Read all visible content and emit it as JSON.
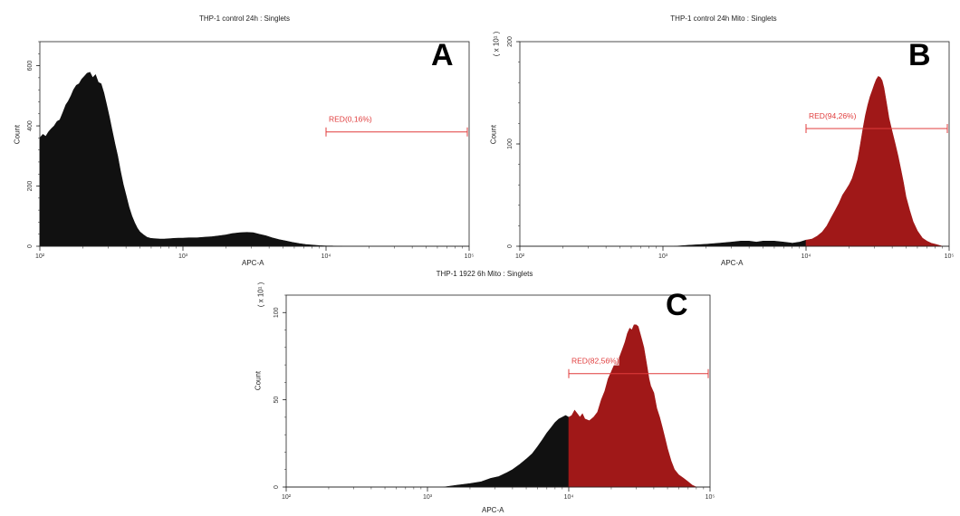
{
  "chart_data": [
    {
      "type": "area",
      "title": "THP-1 control 24h : Singlets",
      "panel_label": "A",
      "xlabel": "APC-A",
      "ylabel": "Count",
      "y_multiplier_label": "",
      "x_scale": "log",
      "xlim": [
        100,
        100000
      ],
      "ylim": [
        0,
        680
      ],
      "x_ticks": [
        100,
        1000,
        10000,
        100000
      ],
      "y_ticks": [
        0,
        200,
        400,
        600
      ],
      "y_tick_labels": [
        "0",
        "200",
        "400",
        "600"
      ],
      "gate": {
        "label": "RED(0,16%)",
        "x_start": 10000,
        "x_end": 100000,
        "y": 380
      },
      "fill_color": "#111111",
      "gate_fill_color": "#111111",
      "series": [
        {
          "x": [
            100,
            105,
            110,
            115,
            120,
            126,
            132,
            138,
            145,
            152,
            158,
            165,
            172,
            180,
            188,
            196,
            205,
            214,
            224,
            234,
            245,
            256,
            268,
            280,
            293,
            306,
            320,
            335,
            350,
            366,
            383,
            400,
            420,
            440,
            460,
            480,
            500,
            530,
            560,
            600,
            640,
            690,
            740,
            800,
            860,
            930,
            1000,
            1100,
            1250,
            1400,
            1600,
            1800,
            2000,
            2200,
            2500,
            2800,
            3100,
            3400,
            3800,
            4200,
            4700,
            5200,
            5800,
            6500,
            7200,
            8000,
            9000,
            10000,
            11000,
            12000,
            13000
          ],
          "y": [
            360,
            372,
            365,
            380,
            390,
            400,
            415,
            420,
            445,
            470,
            482,
            500,
            520,
            535,
            540,
            555,
            565,
            575,
            578,
            560,
            570,
            545,
            540,
            510,
            470,
            430,
            385,
            340,
            300,
            250,
            205,
            170,
            130,
            100,
            78,
            60,
            48,
            38,
            30,
            26,
            25,
            24,
            24,
            25,
            26,
            27,
            27,
            28,
            28,
            30,
            32,
            35,
            38,
            42,
            45,
            46,
            45,
            40,
            35,
            28,
            22,
            18,
            13,
            9,
            6,
            4,
            2,
            1,
            1,
            0,
            0
          ]
        }
      ]
    },
    {
      "type": "area",
      "title": "THP-1 control 24h Mito : Singlets",
      "panel_label": "B",
      "xlabel": "APC-A",
      "ylabel": "Count",
      "y_multiplier_label": "( x 10¹ )",
      "x_scale": "log",
      "xlim": [
        100,
        100000
      ],
      "ylim": [
        0,
        200
      ],
      "x_ticks": [
        100,
        1000,
        10000,
        100000
      ],
      "y_ticks": [
        0,
        100,
        200
      ],
      "y_tick_labels": [
        "0",
        "100",
        "200"
      ],
      "gate": {
        "label": "RED(94,26%)",
        "x_start": 10000,
        "x_end": 100000,
        "y": 115
      },
      "fill_color": "#111111",
      "gate_fill_color": "#a01818",
      "series": [
        {
          "x": [
            1200,
            1500,
            2000,
            2500,
            3000,
            3500,
            4000,
            4500,
            5000,
            6000,
            7000,
            8000,
            9000,
            10000,
            11000,
            12000,
            13000,
            14000,
            15000,
            16000,
            17000,
            18000,
            19000,
            20000,
            21000,
            22000,
            23000,
            24000,
            25000,
            26000,
            27000,
            28000,
            29000,
            30000,
            31000,
            32000,
            33000,
            34000,
            35000,
            36000,
            37000,
            38000,
            40000,
            42000,
            44000,
            46000,
            48000,
            50000,
            53000,
            56000,
            60000,
            65000,
            70000,
            75000,
            80000,
            90000
          ],
          "y": [
            0,
            1,
            2,
            3,
            4,
            5,
            5,
            4,
            5,
            5,
            4,
            3,
            4,
            6,
            7,
            10,
            14,
            20,
            28,
            35,
            42,
            50,
            55,
            60,
            66,
            75,
            85,
            100,
            115,
            128,
            138,
            146,
            152,
            158,
            163,
            166,
            165,
            162,
            155,
            145,
            135,
            125,
            112,
            100,
            88,
            75,
            62,
            48,
            35,
            24,
            15,
            8,
            5,
            3,
            2,
            0
          ]
        }
      ]
    },
    {
      "type": "area",
      "title": "THP-1 1922 6h Mito : Singlets",
      "panel_label": "C",
      "xlabel": "APC-A",
      "ylabel": "Count",
      "y_multiplier_label": "( x 10¹ )",
      "x_scale": "log",
      "xlim": [
        100,
        100000
      ],
      "ylim": [
        0,
        110
      ],
      "x_ticks": [
        100,
        1000,
        10000,
        100000
      ],
      "y_ticks": [
        0,
        50,
        100
      ],
      "y_tick_labels": [
        "0",
        "50",
        "100"
      ],
      "gate": {
        "label": "RED(82,56%)",
        "x_start": 10000,
        "x_end": 100000,
        "y": 65
      },
      "fill_color": "#111111",
      "gate_fill_color": "#a01818",
      "series": [
        {
          "x": [
            1300,
            1600,
            2000,
            2400,
            2800,
            3200,
            3600,
            4000,
            4500,
            5000,
            5500,
            6000,
            6500,
            7000,
            7500,
            8000,
            8500,
            9000,
            9500,
            10000,
            10500,
            11000,
            11500,
            12000,
            12500,
            13000,
            14000,
            15000,
            16000,
            17000,
            18000,
            19000,
            20000,
            21000,
            22000,
            23000,
            24000,
            25000,
            26000,
            27000,
            28000,
            29000,
            30000,
            31000,
            32000,
            33000,
            34000,
            35000,
            36000,
            37000,
            38000,
            40000,
            42000,
            44000,
            46000,
            48000,
            50000,
            53000,
            56000,
            60000,
            65000,
            70000,
            75000,
            80000
          ],
          "y": [
            0,
            1,
            2,
            3,
            5,
            6,
            8,
            10,
            13,
            16,
            19,
            23,
            27,
            31,
            34,
            37,
            39,
            40,
            41,
            40,
            41,
            44,
            42,
            40,
            42,
            39,
            38,
            40,
            43,
            50,
            55,
            62,
            66,
            70,
            72,
            75,
            79,
            83,
            88,
            91,
            90,
            93,
            93,
            92,
            88,
            84,
            80,
            74,
            68,
            62,
            58,
            54,
            45,
            40,
            34,
            28,
            22,
            15,
            10,
            7,
            5,
            3,
            1,
            0
          ]
        }
      ]
    }
  ]
}
